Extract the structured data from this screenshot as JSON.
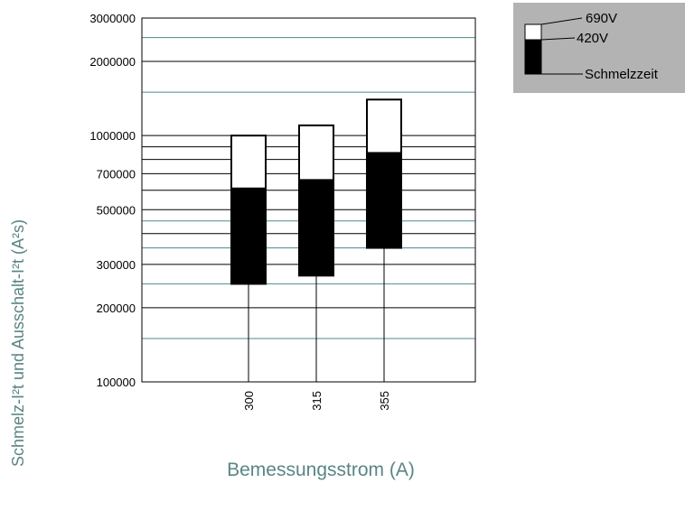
{
  "chart_data": {
    "type": "bar",
    "subtype": "floating-stacked",
    "xlabel": "Bemessungsstrom (A)",
    "ylabel": "Schmelz-I²t und Ausschalt-I²t (A²s)",
    "yscale": "log",
    "ylim": [
      100000,
      3000000
    ],
    "ytick_labels": [
      "3000000",
      "2000000",
      "1000000",
      "700000",
      "500000",
      "300000",
      "200000",
      "100000"
    ],
    "yticks": [
      3000000,
      2000000,
      1000000,
      700000,
      500000,
      300000,
      200000,
      100000
    ],
    "categories": [
      "300",
      "315",
      "355"
    ],
    "series": [
      {
        "name": "Schmelzzeit",
        "color": "#000000",
        "low": [
          250000,
          270000,
          350000
        ],
        "high": [
          610000,
          660000,
          850000
        ]
      },
      {
        "name": "420V / 690V",
        "color": "#ffffff",
        "low": [
          610000,
          660000,
          850000
        ],
        "high": [
          1000000,
          1100000,
          1400000
        ]
      }
    ],
    "gridlines_black": [
      2000000,
      1000000,
      900000,
      800000,
      700000,
      600000,
      500000,
      400000,
      300000,
      200000
    ],
    "gridlines_teal": [
      2500000,
      1500000,
      450000,
      350000,
      250000,
      150000
    ],
    "grid_colors": {
      "black": "#000000",
      "teal": "#4f8a8b"
    },
    "axis_label_color": "#5a8585",
    "legend": {
      "position": "top-right",
      "background": "#b3b3b3",
      "labels": [
        "690V",
        "420V",
        "Schmelzzeit"
      ]
    }
  }
}
